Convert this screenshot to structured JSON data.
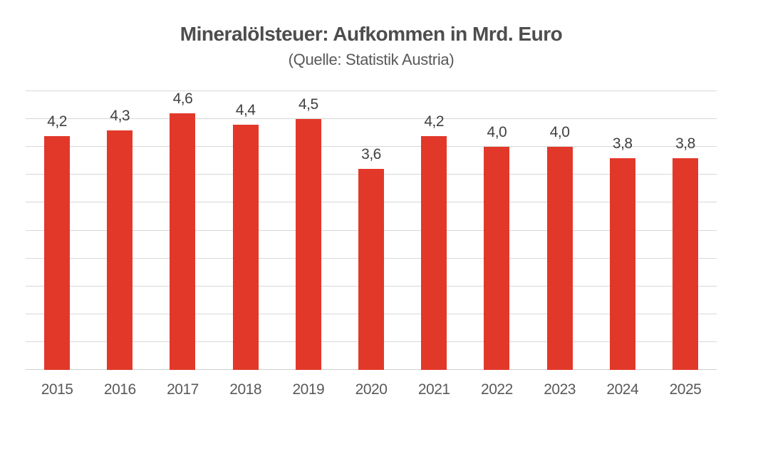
{
  "chart_data": {
    "type": "bar",
    "title": "Mineralölsteuer: Aufkommen in Mrd. Euro",
    "subtitle": "(Quelle: Statistik Austria)",
    "categories": [
      "2015",
      "2016",
      "2017",
      "2018",
      "2019",
      "2020",
      "2021",
      "2022",
      "2023",
      "2024",
      "2025"
    ],
    "values": [
      4.2,
      4.3,
      4.6,
      4.4,
      4.5,
      3.6,
      4.2,
      4.0,
      4.0,
      3.8,
      3.8
    ],
    "value_labels": [
      "4,2",
      "4,3",
      "4,6",
      "4,4",
      "4,5",
      "3,6",
      "4,2",
      "4,0",
      "4,0",
      "3,8",
      "3,8"
    ],
    "xlabel": "",
    "ylabel": "",
    "ylim": [
      0,
      5
    ],
    "gridline_step": 0.5,
    "grid": true,
    "legend": false,
    "colors": {
      "bar": "#e2382a",
      "grid": "#d8d8d8",
      "axis_line": "#d0d0d0",
      "title": "#4d4d4d",
      "subtitle": "#595959",
      "value_label": "#404040",
      "tick_label": "#595959",
      "background": "#ffffff"
    }
  }
}
